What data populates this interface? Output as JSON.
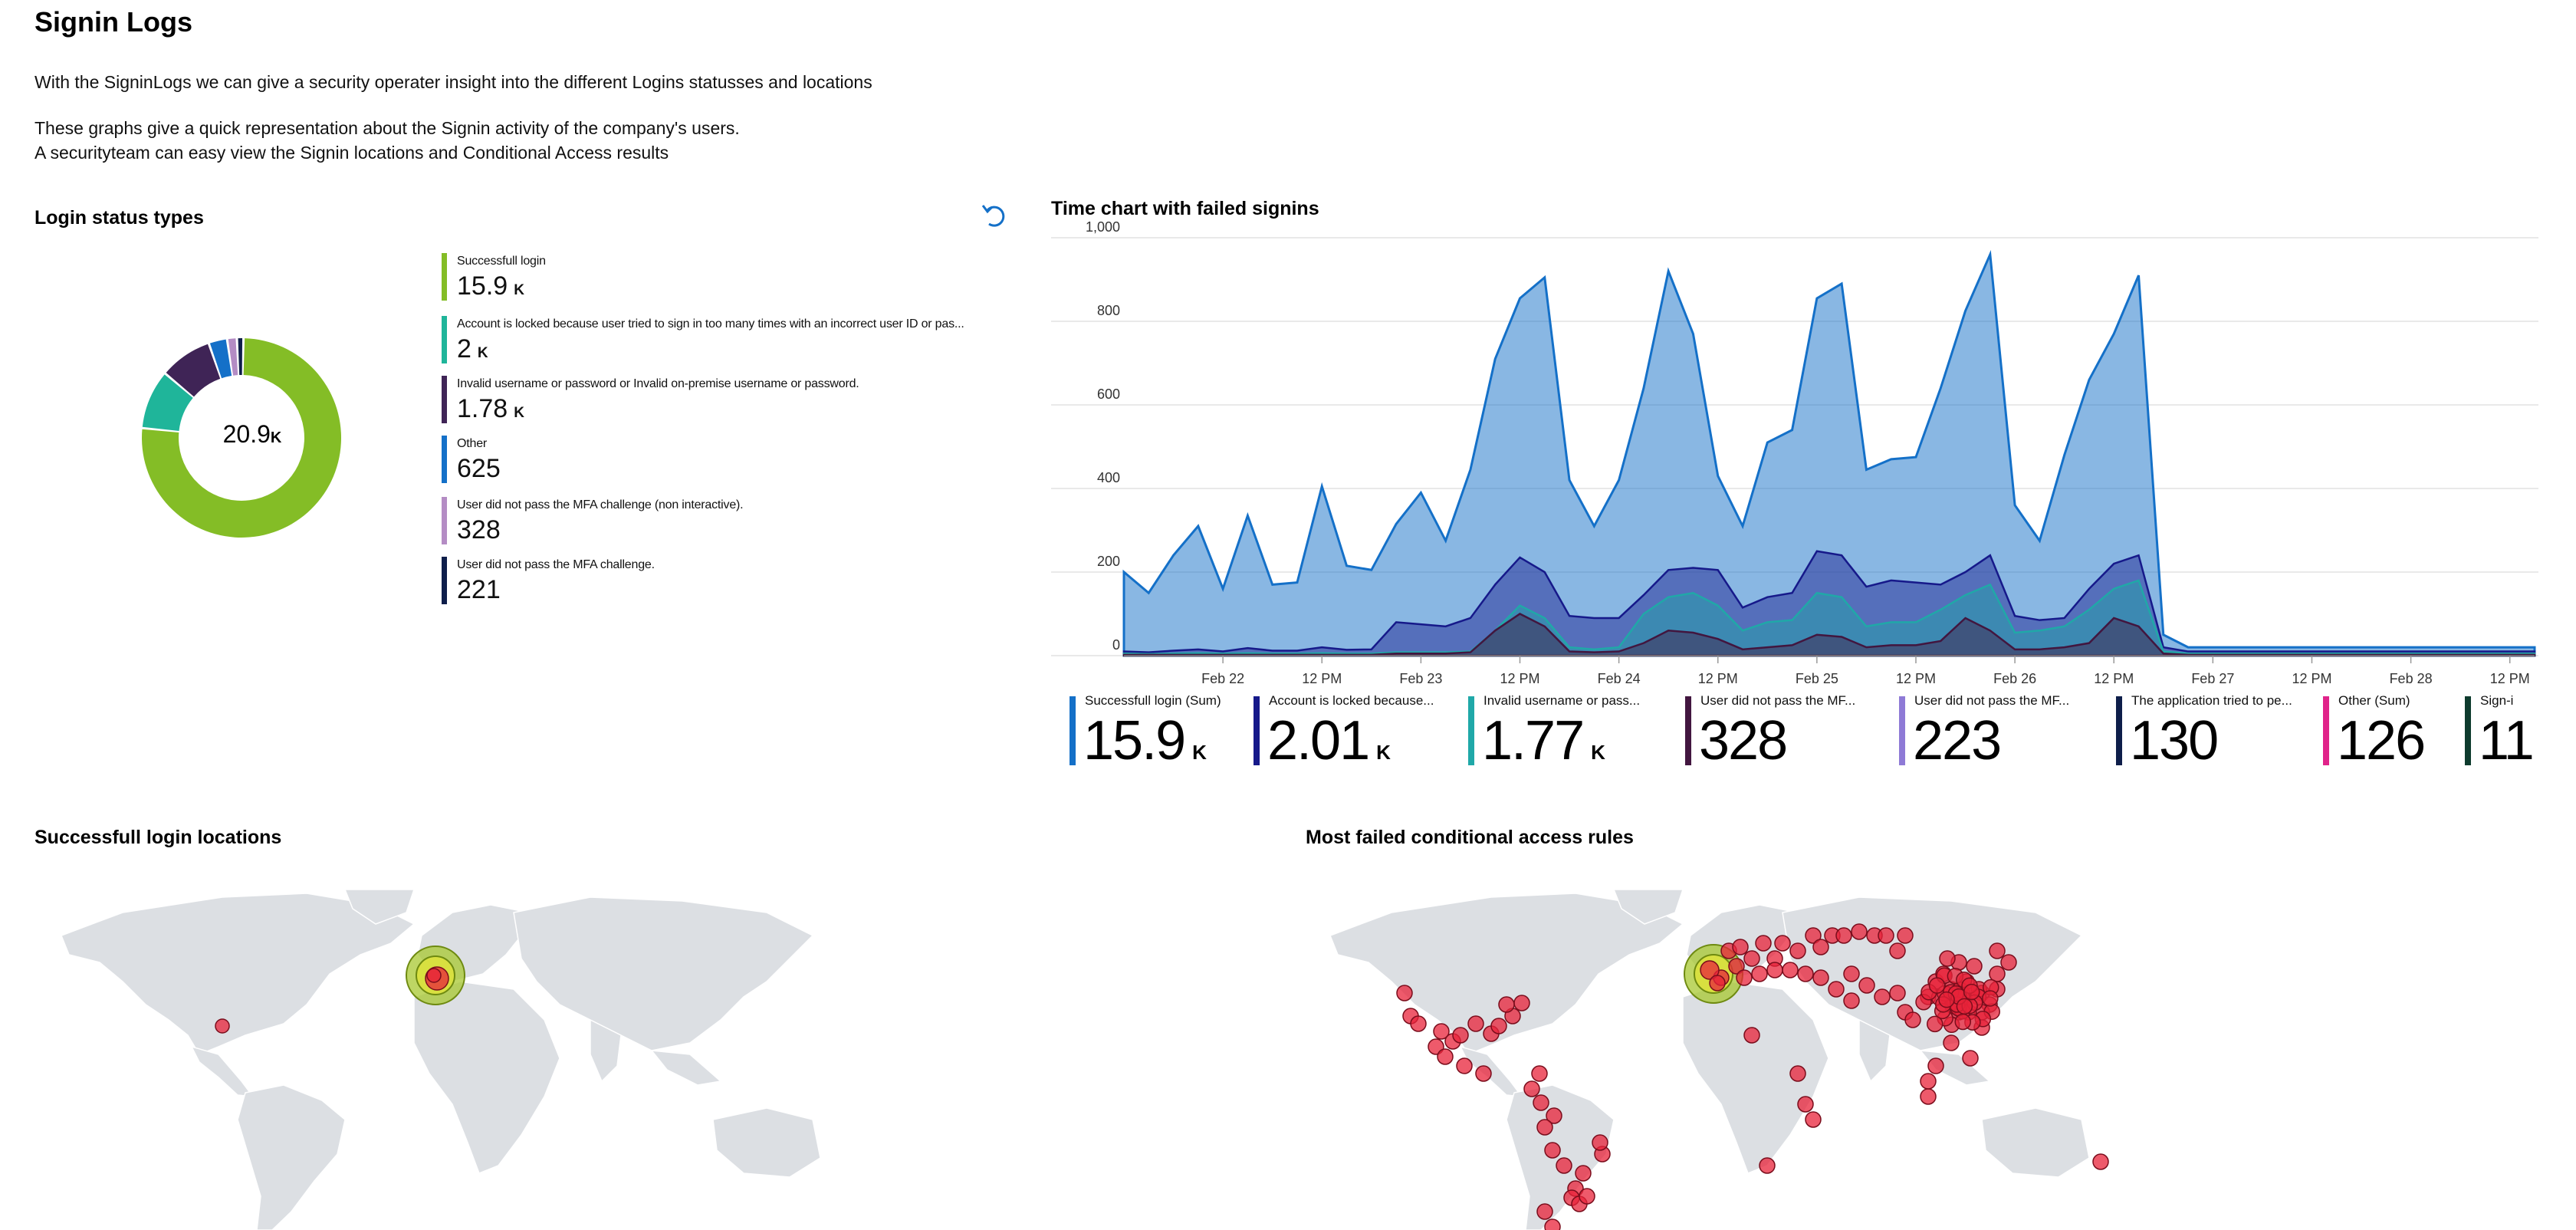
{
  "page": {
    "title": "Signin Logs",
    "intro_1": "With the SigninLogs we can give a security operater insight into the different Logins statusses and locations",
    "intro_2": "These graphs give a quick representation about the Signin activity of the company's users.",
    "intro_3": "A securityteam can easy view the Signin locations and Conditional Access results"
  },
  "login_status": {
    "title": "Login status types",
    "center_value": "20.9",
    "center_unit": "K",
    "items": [
      {
        "label": "Successfull login",
        "value": "15.9",
        "unit": "K",
        "color": "#84bd26",
        "share": 15900
      },
      {
        "label": "Account is locked because user tried to sign in too many times with an incorrect user ID or pas...",
        "value": "2",
        "unit": "K",
        "color": "#1fb59a",
        "share": 2000
      },
      {
        "label": "Invalid username or password or Invalid on-premise username or password.",
        "value": "1.78",
        "unit": "K",
        "color": "#3f2456",
        "share": 1780
      },
      {
        "label": "Other",
        "value": "625",
        "unit": "",
        "color": "#1470c8",
        "share": 625
      },
      {
        "label": "User did not pass the MFA challenge (non interactive).",
        "value": "328",
        "unit": "",
        "color": "#b48cc4",
        "share": 328
      },
      {
        "label": "User did not pass the MFA challenge.",
        "value": "221",
        "unit": "",
        "color": "#0e1e4a",
        "share": 221
      }
    ]
  },
  "time_chart": {
    "title": "Time chart with failed signins",
    "tiles": [
      {
        "label": "Successfull login (Sum)",
        "value": "15.9",
        "unit": "K",
        "color": "#1470c8"
      },
      {
        "label": "Account is locked because...",
        "value": "2.01",
        "unit": "K",
        "color": "#16198a"
      },
      {
        "label": "Invalid username or pass...",
        "value": "1.77",
        "unit": "K",
        "color": "#20a8a8"
      },
      {
        "label": "User did not pass the MF...",
        "value": "328",
        "unit": "",
        "color": "#42163f"
      },
      {
        "label": "User did not pass the MF...",
        "value": "223",
        "unit": "",
        "color": "#8e7ad6"
      },
      {
        "label": "The application tried to pe...",
        "value": "130",
        "unit": "",
        "color": "#0e1e4a"
      },
      {
        "label": "Other (Sum)",
        "value": "126",
        "unit": "",
        "color": "#e0238a"
      },
      {
        "label": "Sign-i",
        "value": "11",
        "unit": "",
        "color": "#0e3b2e"
      }
    ]
  },
  "chart_data": {
    "type": "area",
    "title": "Time chart with failed signins",
    "ylim": [
      0,
      1000
    ],
    "y_ticks": [
      "1,000",
      "800",
      "600",
      "400",
      "200",
      "0"
    ],
    "x_ticks": [
      "Feb 22",
      "12 PM",
      "Feb 23",
      "12 PM",
      "Feb 24",
      "12 PM",
      "Feb 25",
      "12 PM",
      "Feb 26",
      "12 PM",
      "Feb 27",
      "12 PM",
      "Feb 28",
      "12 PM"
    ],
    "x_hours": [
      0,
      3,
      6,
      9,
      12,
      15,
      18,
      21,
      24,
      27,
      30,
      33,
      36,
      39,
      42,
      45,
      48,
      51,
      54,
      57,
      60,
      63,
      66,
      69,
      72,
      75,
      78,
      81,
      84,
      87,
      90,
      93,
      96,
      99,
      102,
      105,
      108,
      111,
      114,
      117,
      120,
      123,
      126,
      129,
      132,
      135,
      138,
      141,
      144,
      147,
      150,
      153,
      156,
      159,
      162,
      165,
      168,
      171
    ],
    "grid": true,
    "series": [
      {
        "name": "Successfull login (Sum)",
        "color": "#1470c8",
        "values": [
          200,
          150,
          240,
          310,
          160,
          335,
          170,
          175,
          405,
          215,
          205,
          315,
          390,
          275,
          445,
          710,
          855,
          905,
          420,
          310,
          420,
          640,
          920,
          770,
          430,
          310,
          510,
          540,
          855,
          890,
          445,
          470,
          475,
          640,
          825,
          960,
          360,
          275,
          480,
          660,
          770,
          910,
          50,
          20,
          20,
          20,
          20,
          20,
          20,
          20,
          20,
          20,
          20,
          20,
          20,
          20,
          20,
          20
        ]
      },
      {
        "name": "Account is locked because...",
        "color": "#16198a",
        "values": [
          10,
          8,
          12,
          15,
          10,
          18,
          12,
          12,
          20,
          14,
          15,
          80,
          75,
          70,
          90,
          170,
          235,
          200,
          95,
          90,
          90,
          145,
          205,
          210,
          205,
          115,
          140,
          150,
          250,
          240,
          165,
          180,
          175,
          170,
          200,
          240,
          95,
          85,
          90,
          160,
          220,
          240,
          20,
          10,
          10,
          10,
          10,
          10,
          10,
          10,
          10,
          10,
          10,
          10,
          10,
          10,
          10,
          10
        ]
      },
      {
        "name": "Invalid username or pass...",
        "color": "#20a8a8",
        "values": [
          5,
          4,
          5,
          6,
          5,
          6,
          5,
          5,
          6,
          5,
          5,
          8,
          8,
          8,
          10,
          60,
          120,
          90,
          20,
          15,
          20,
          100,
          140,
          150,
          120,
          60,
          80,
          85,
          150,
          140,
          70,
          80,
          80,
          110,
          145,
          170,
          55,
          60,
          70,
          110,
          160,
          180,
          10,
          5,
          5,
          5,
          5,
          5,
          5,
          5,
          5,
          5,
          5,
          5,
          5,
          5,
          5,
          5
        ]
      },
      {
        "name": "User did not pass the MF...",
        "color": "#42163f",
        "values": [
          2,
          2,
          2,
          2,
          2,
          2,
          2,
          2,
          2,
          2,
          2,
          5,
          5,
          5,
          8,
          60,
          100,
          70,
          10,
          8,
          10,
          30,
          60,
          55,
          40,
          15,
          20,
          25,
          50,
          45,
          20,
          25,
          25,
          35,
          90,
          60,
          15,
          15,
          20,
          30,
          90,
          70,
          5,
          2,
          2,
          2,
          2,
          2,
          2,
          2,
          2,
          2,
          2,
          2,
          2,
          2,
          2,
          2
        ]
      }
    ]
  },
  "maps": {
    "left_title": "Successfull login locations",
    "right_title": "Most failed conditional access rules",
    "land_color": "#dcdfe3",
    "dot_color": "#e8233a",
    "hot_color": "#a8c830"
  }
}
